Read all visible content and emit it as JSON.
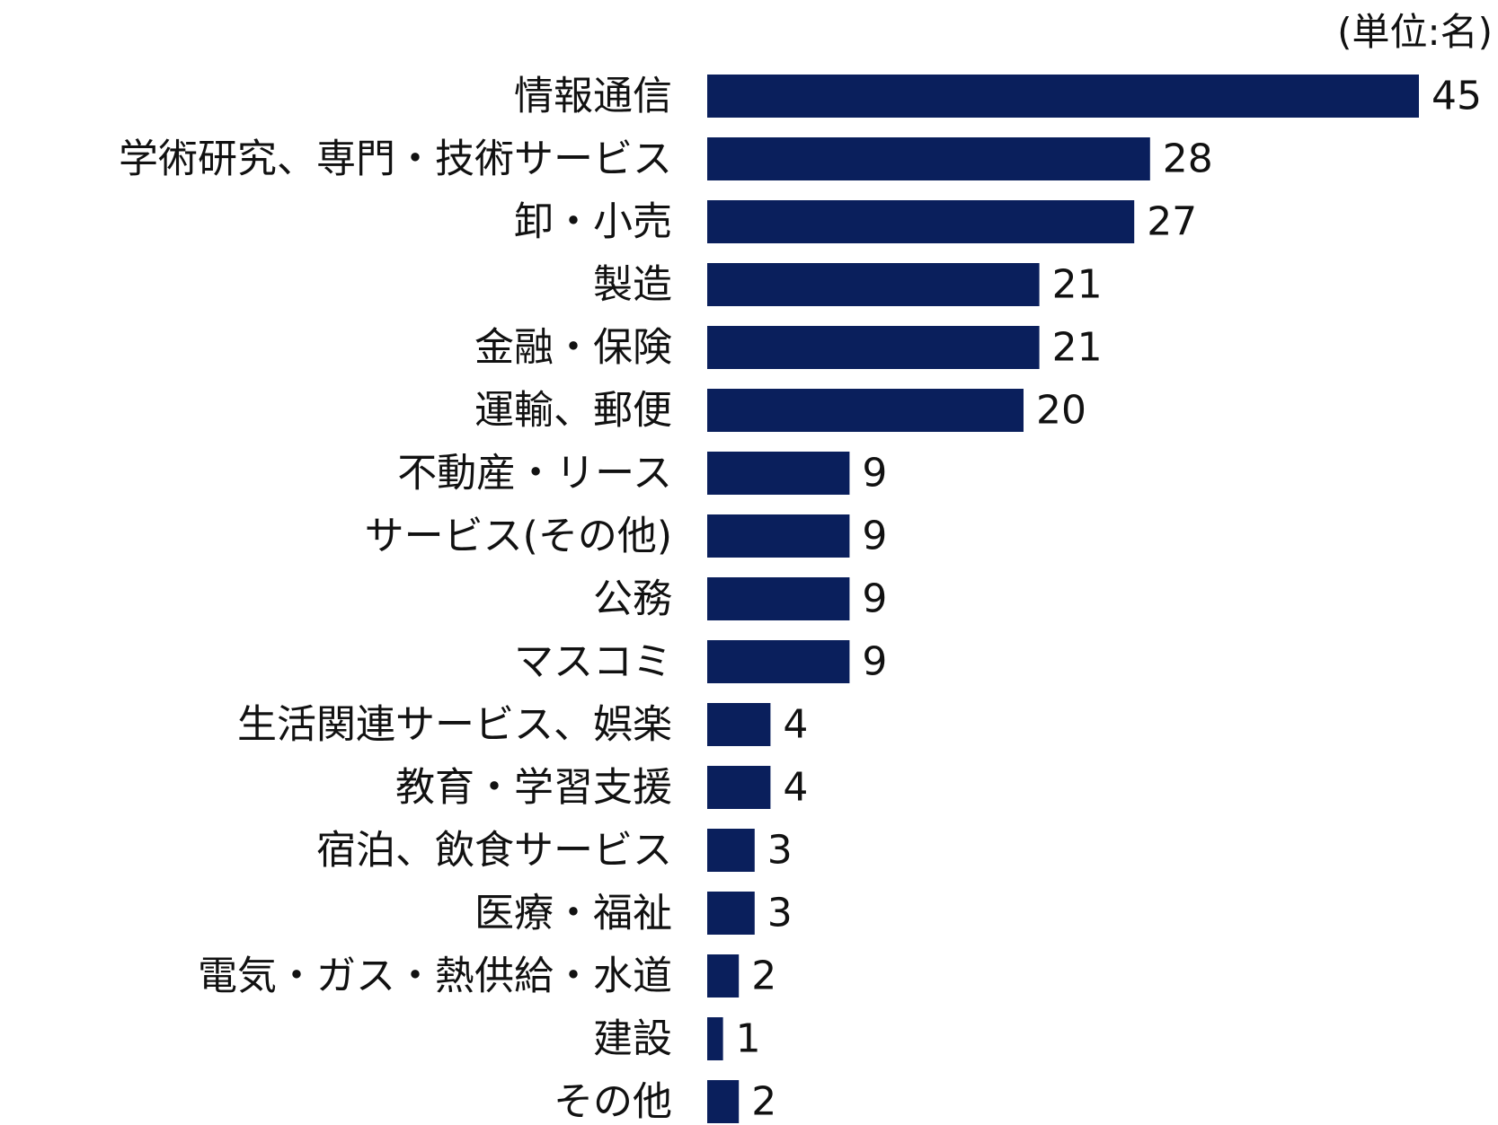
{
  "chart_data": {
    "type": "bar",
    "orientation": "horizontal",
    "unit_note": "(単位:名)",
    "bar_color": "#0a1f5c",
    "categories": [
      "情報通信",
      "学術研究、専門・技術サービス",
      "卸・小売",
      "製造",
      "金融・保険",
      "運輸、郵便",
      "不動産・リース",
      "サービス(その他)",
      "公務",
      "マスコミ",
      "生活関連サービス、娯楽",
      "教育・学習支援",
      "宿泊、飲食サービス",
      "医療・福祉",
      "電気・ガス・熱供給・水道",
      "建設",
      "その他"
    ],
    "values": [
      45,
      28,
      27,
      21,
      21,
      20,
      9,
      9,
      9,
      9,
      4,
      4,
      3,
      3,
      2,
      1,
      2
    ],
    "xlim": [
      0,
      50
    ],
    "grid": false,
    "legend": "none"
  }
}
